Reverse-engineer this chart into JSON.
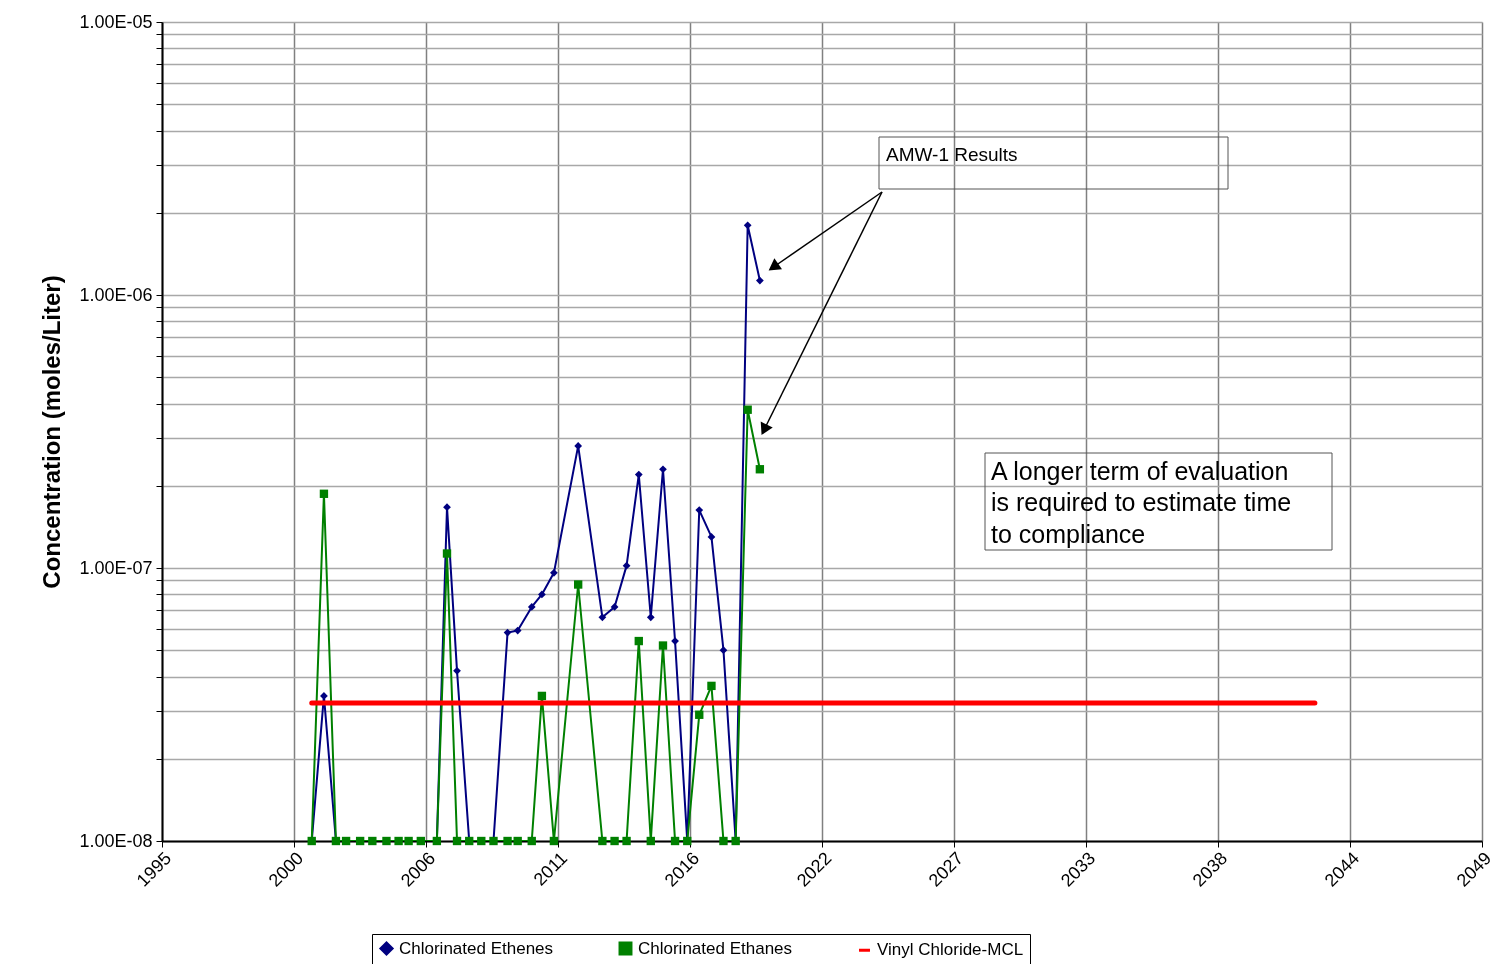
{
  "chart_data": {
    "type": "line",
    "ylabel": "Concentration (moles/Liter)",
    "log": "y",
    "grid": true,
    "legend": "bottom",
    "line_style": "solid",
    "xlim": [
      "1995-02-24",
      "2049-08-25"
    ],
    "xticks": [
      {
        "value": "1995-02-24",
        "label": "1995"
      },
      {
        "value": "2000-08-07",
        "label": "2000"
      },
      {
        "value": "2006-01-19",
        "label": "2006"
      },
      {
        "value": "2011-07-02",
        "label": "2011"
      },
      {
        "value": "2016-12-13",
        "label": "2016"
      },
      {
        "value": "2022-05-27",
        "label": "2022"
      },
      {
        "value": "2027-11-07",
        "label": "2027"
      },
      {
        "value": "2033-04-20",
        "label": "2033"
      },
      {
        "value": "2038-10-01",
        "label": "2038"
      },
      {
        "value": "2044-03-14",
        "label": "2044"
      },
      {
        "value": "2049-08-25",
        "label": "2049"
      }
    ],
    "ylim": [
      1e-08,
      1e-05
    ],
    "yticks": [
      {
        "value": 1e-08,
        "label": "1.00E-08"
      },
      {
        "value": 2e-08,
        "label": null
      },
      {
        "value": 3e-08,
        "label": null
      },
      {
        "value": 4e-08,
        "label": null
      },
      {
        "value": 5e-08,
        "label": null
      },
      {
        "value": 6e-08,
        "label": null
      },
      {
        "value": 7e-08,
        "label": null
      },
      {
        "value": 8e-08,
        "label": null
      },
      {
        "value": 9e-08,
        "label": null
      },
      {
        "value": 1e-07,
        "label": "1.00E-07"
      },
      {
        "value": 2e-07,
        "label": null
      },
      {
        "value": 3e-07,
        "label": null
      },
      {
        "value": 4e-07,
        "label": null
      },
      {
        "value": 5e-07,
        "label": null
      },
      {
        "value": 6e-07,
        "label": null
      },
      {
        "value": 7e-07,
        "label": null
      },
      {
        "value": 8e-07,
        "label": null
      },
      {
        "value": 9e-07,
        "label": null
      },
      {
        "value": 1e-06,
        "label": "1.00E-06"
      },
      {
        "value": 2e-06,
        "label": null
      },
      {
        "value": 3e-06,
        "label": null
      },
      {
        "value": 4e-06,
        "label": null
      },
      {
        "value": 5e-06,
        "label": null
      },
      {
        "value": 6e-06,
        "label": null
      },
      {
        "value": 7e-06,
        "label": null
      },
      {
        "value": 8e-06,
        "label": null
      },
      {
        "value": 9e-06,
        "label": null
      },
      {
        "value": 1e-05,
        "label": "1.00E-05"
      }
    ],
    "x": [
      "2001-05",
      "2001-11",
      "2002-05",
      "2002-10",
      "2003-05",
      "2003-11",
      "2004-06",
      "2004-12",
      "2005-05",
      "2005-11",
      "2006-07",
      "2006-12",
      "2007-05",
      "2007-11",
      "2008-05",
      "2008-11",
      "2009-06",
      "2009-11",
      "2010-06",
      "2010-11",
      "2011-05",
      "2012-05",
      "2013-05",
      "2013-11",
      "2014-05",
      "2014-11",
      "2015-05",
      "2015-11",
      "2016-05",
      "2016-11",
      "2017-05",
      "2017-11",
      "2018-05",
      "2018-11",
      "2019-05",
      "2019-11"
    ],
    "series": [
      {
        "name": "Chlorinated Ethenes",
        "color": "#000080",
        "marker": "diamond",
        "values": [
          1e-08,
          3.4e-08,
          1e-08,
          1e-08,
          1e-08,
          1e-08,
          1e-08,
          1e-08,
          1e-08,
          1e-08,
          1e-08,
          1.67e-07,
          4.2e-08,
          1e-08,
          1e-08,
          1e-08,
          5.8e-08,
          5.9e-08,
          7.2e-08,
          8e-08,
          9.6e-08,
          2.8e-07,
          6.6e-08,
          7.2e-08,
          1.02e-07,
          2.2e-07,
          6.6e-08,
          2.3e-07,
          5.4e-08,
          1e-08,
          1.63e-07,
          1.3e-07,
          5e-08,
          1e-08,
          1.8e-06,
          1.13e-06
        ]
      },
      {
        "name": "Chlorinated Ethanes",
        "color": "#008000",
        "marker": "square",
        "values": [
          1e-08,
          1.87e-07,
          1e-08,
          1e-08,
          1e-08,
          1e-08,
          1e-08,
          1e-08,
          1e-08,
          1e-08,
          1e-08,
          1.13e-07,
          1e-08,
          1e-08,
          1e-08,
          1e-08,
          1e-08,
          1e-08,
          1e-08,
          3.4e-08,
          1e-08,
          8.7e-08,
          1e-08,
          1e-08,
          1e-08,
          5.4e-08,
          1e-08,
          5.2e-08,
          1e-08,
          1e-08,
          2.9e-08,
          3.7e-08,
          1e-08,
          1e-08,
          3.8e-07,
          2.3e-07
        ]
      },
      {
        "name": "Vinyl Chloride-MCL",
        "color": "#ff0000",
        "marker": "none",
        "x": [
          "2001-05",
          "2042-10"
        ],
        "values": [
          3.2e-08,
          3.2e-08
        ]
      }
    ],
    "annotations": [
      "AMW-1 Results",
      "A longer term of evaluation\nis required to estimate time\nto compliance"
    ]
  }
}
